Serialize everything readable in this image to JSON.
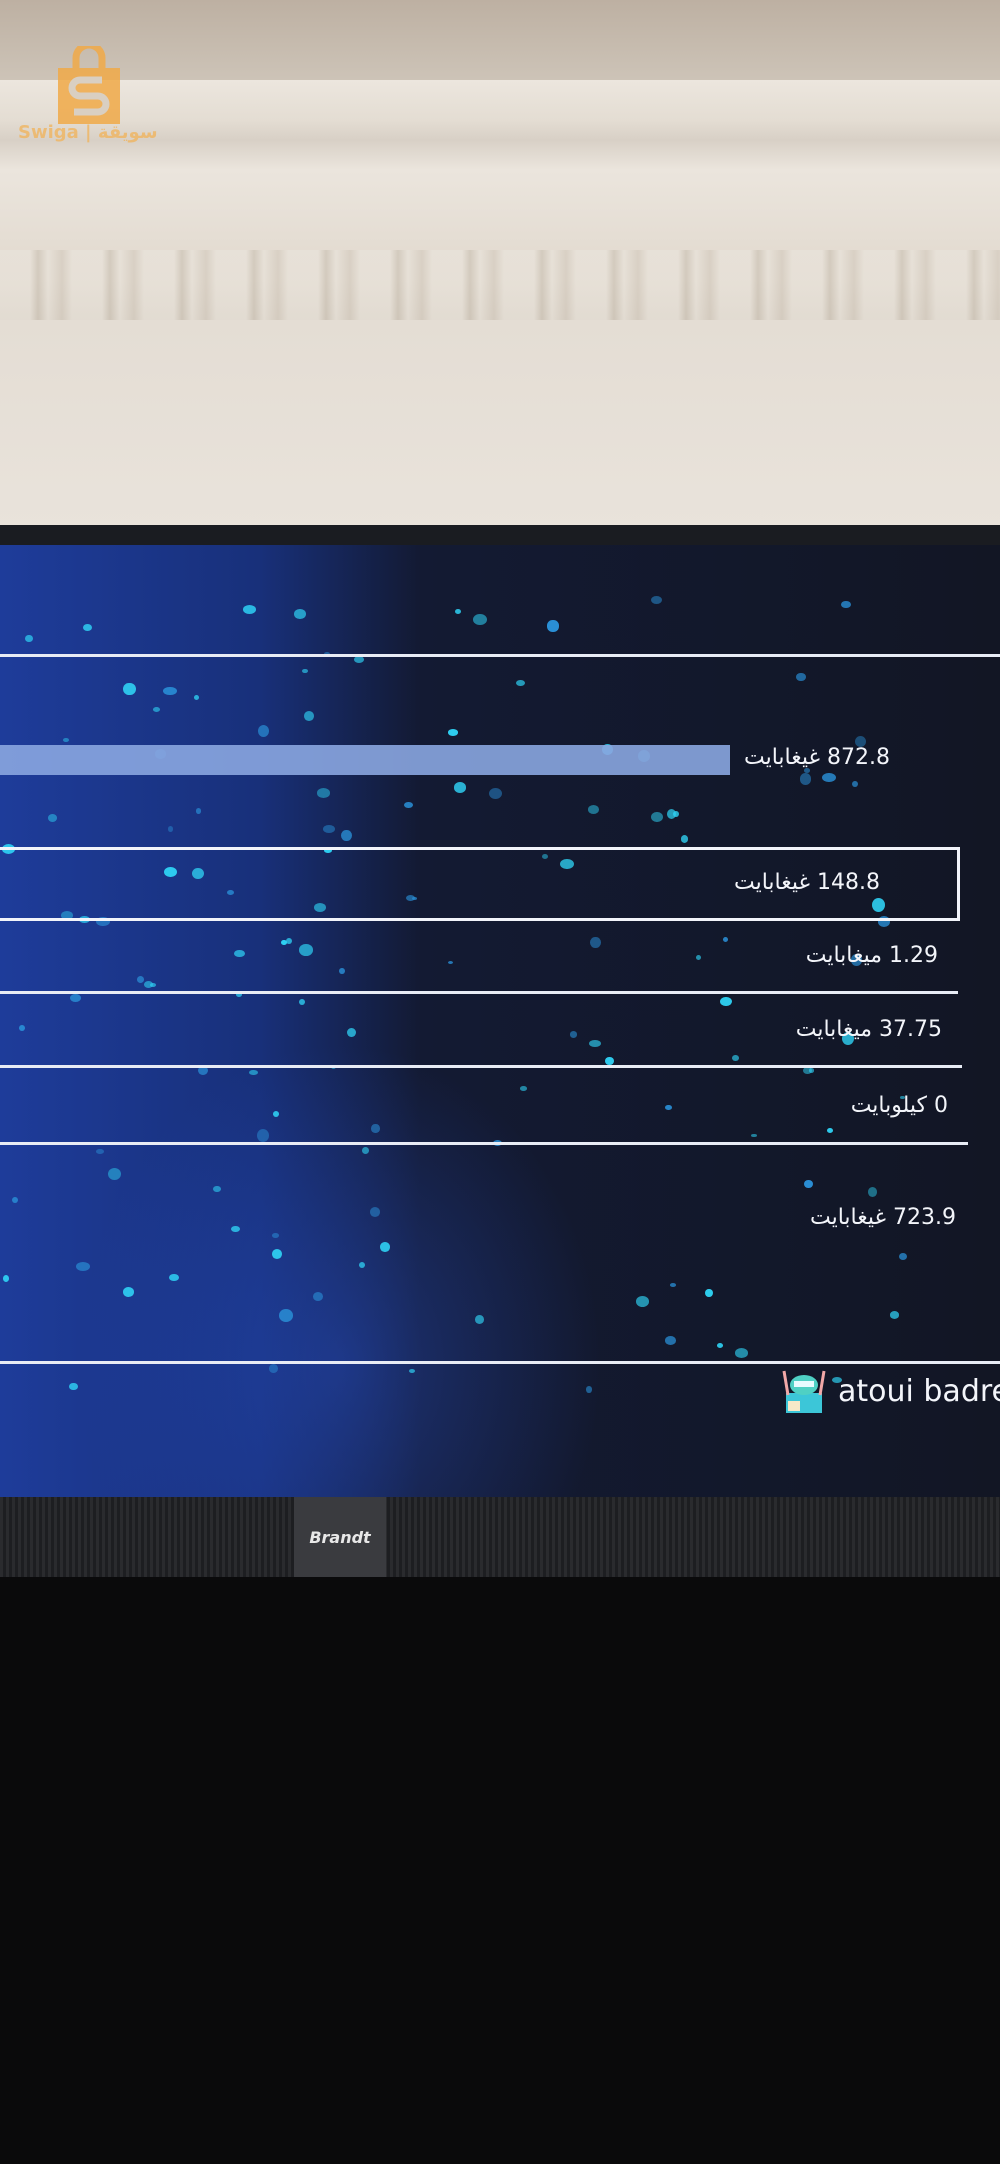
{
  "watermark": {
    "text": "Swiga | سويقة",
    "color": "#f0b560"
  },
  "storage": {
    "rows": [
      {
        "value": "872.8 غيغابايت"
      },
      {
        "value": "148.8 غيغابايت"
      },
      {
        "value": "1.29 ميغابايت"
      },
      {
        "value": "37.75 ميغابايت"
      },
      {
        "value": "0 كيلوبايت"
      },
      {
        "value": "723.9 غيغابايت"
      }
    ]
  },
  "user": {
    "name": "atoui badrec",
    "avatar_icon": "robot-avatar-icon"
  },
  "tv": {
    "brand": "Brandt"
  },
  "colors": {
    "particle": "#2fd3f5",
    "bar": "#8aa6e0",
    "text": "#f3f5fa"
  }
}
